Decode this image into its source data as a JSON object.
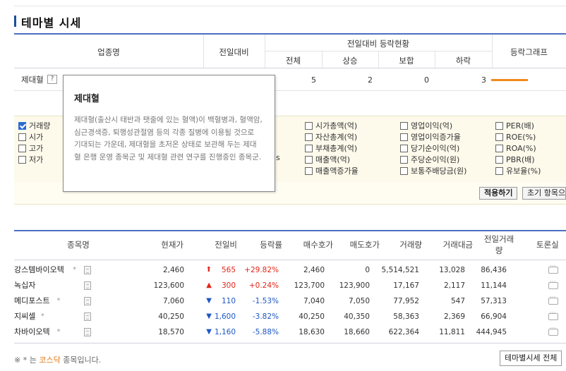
{
  "title": "테마별 시세",
  "upper_table": {
    "headers": {
      "industry": "업종명",
      "change": "전일대비",
      "status_group": "전일대비 등락현황",
      "total": "전체",
      "rise": "상승",
      "flat": "보합",
      "fall": "하락",
      "graph": "등락그래프"
    },
    "row": {
      "name": "제대혈",
      "help": "?",
      "total": "5",
      "rise": "2",
      "flat": "0",
      "fall": "3"
    },
    "graph_color": "#f08a1c"
  },
  "tooltip": {
    "title": "제대혈",
    "desc": "제대혈(출산시 태반과 탯줄에 있는 혈액)이 백혈병과, 혈액암, 심근경색증, 퇴행성관절염 등의 각종 질병에 이용될 것으로 기대되는 가운데, 제대혈을 초저온 상태로 보관해 두는 제대혈 은행 운영 종목군 및 제대혈 관련 연구를 진행중인 종목군."
  },
  "options": {
    "col1": [
      {
        "label": "거래량",
        "checked": true
      },
      {
        "label": "시가",
        "checked": false
      },
      {
        "label": "고가",
        "checked": false
      },
      {
        "label": "저가",
        "checked": false
      }
    ],
    "col1_hidden_suffix": "s",
    "col2": [
      {
        "label": "시가총액(억)",
        "checked": false
      },
      {
        "label": "자산총계(억)",
        "checked": false
      },
      {
        "label": "부채총계(억)",
        "checked": false
      },
      {
        "label": "매출액(억)",
        "checked": false
      },
      {
        "label": "매출액증가율",
        "checked": false
      }
    ],
    "col3": [
      {
        "label": "영업이익(억)",
        "checked": false
      },
      {
        "label": "영업이익증가율",
        "checked": false
      },
      {
        "label": "당기순이익(억)",
        "checked": false
      },
      {
        "label": "주당순이익(원)",
        "checked": false
      },
      {
        "label": "보통주배당금(원)",
        "checked": false
      }
    ],
    "col4": [
      {
        "label": "PER(배)",
        "checked": false
      },
      {
        "label": "ROE(%)",
        "checked": false
      },
      {
        "label": "ROA(%)",
        "checked": false
      },
      {
        "label": "PBR(배)",
        "checked": false
      },
      {
        "label": "유보율(%)",
        "checked": false
      }
    ],
    "apply_button": "적용하기",
    "reset_button": "초기 항목으로"
  },
  "lower_table": {
    "headers": {
      "name": "종목명",
      "price": "현재가",
      "change": "전일비",
      "rate": "등락률",
      "bid": "매수호가",
      "ask": "매도호가",
      "volume": "거래량",
      "amount": "거래대금",
      "prev_volume_1": "전일거래",
      "prev_volume_2": "량",
      "forum": "토론실"
    },
    "rows": [
      {
        "name": "강스템바이오텍",
        "star": "*",
        "price": "2,460",
        "arrow": "⬆",
        "change": "565",
        "dir": "up",
        "rate": "+29.82%",
        "bid": "2,460",
        "ask": "0",
        "volume": "5,514,521",
        "amount": "13,028",
        "prev": "86,436"
      },
      {
        "name": "녹십자",
        "star": "",
        "price": "123,600",
        "arrow": "▲",
        "change": "300",
        "dir": "up",
        "rate": "+0.24%",
        "bid": "123,700",
        "ask": "123,900",
        "volume": "17,167",
        "amount": "2,117",
        "prev": "11,144"
      },
      {
        "name": "메디포스트",
        "star": "*",
        "price": "7,060",
        "arrow": "▼",
        "change": "110",
        "dir": "dn",
        "rate": "-1.53%",
        "bid": "7,040",
        "ask": "7,050",
        "volume": "77,952",
        "amount": "547",
        "prev": "57,313"
      },
      {
        "name": "지씨셀",
        "star": "*",
        "price": "40,250",
        "arrow": "▼",
        "change": "1,600",
        "dir": "dn",
        "rate": "-3.82%",
        "bid": "40,250",
        "ask": "40,350",
        "volume": "58,363",
        "amount": "2,369",
        "prev": "66,904"
      },
      {
        "name": "차바이오텍",
        "star": "*",
        "price": "18,570",
        "arrow": "▼",
        "change": "1,160",
        "dir": "dn",
        "rate": "-5.88%",
        "bid": "18,630",
        "ask": "18,660",
        "volume": "622,364",
        "amount": "11,811",
        "prev": "444,945"
      }
    ]
  },
  "footnote": {
    "prefix": "※ * 는 ",
    "highlight": "코스닥",
    "suffix": " 종목입니다."
  },
  "footer_button": "테마별시세 전체"
}
